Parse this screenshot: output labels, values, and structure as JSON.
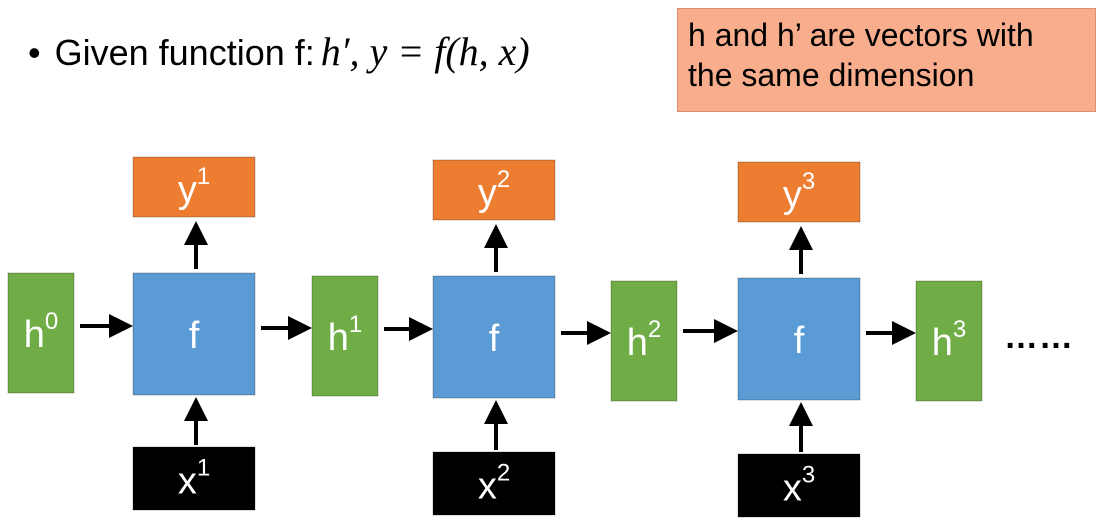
{
  "title": {
    "bullet": "•",
    "prefix": "Given function f:",
    "formula": "h′, y = f(h, x)"
  },
  "note": {
    "line1": "h and h’ are vectors with",
    "line2": "the same dimension"
  },
  "colors": {
    "hidden": "#70ad47",
    "function": "#5b9bd5",
    "output": "#ed7d31",
    "input": "#000000",
    "note_bg": "#f8ad8c"
  },
  "diagram": {
    "hidden": [
      {
        "base": "h",
        "sup": "0"
      },
      {
        "base": "h",
        "sup": "1"
      },
      {
        "base": "h",
        "sup": "2"
      },
      {
        "base": "h",
        "sup": "3"
      }
    ],
    "function_label": "f",
    "outputs": [
      {
        "base": "y",
        "sup": "1"
      },
      {
        "base": "y",
        "sup": "2"
      },
      {
        "base": "y",
        "sup": "3"
      }
    ],
    "inputs": [
      {
        "base": "x",
        "sup": "1"
      },
      {
        "base": "x",
        "sup": "2"
      },
      {
        "base": "x",
        "sup": "3"
      }
    ],
    "ellipsis": "……"
  }
}
